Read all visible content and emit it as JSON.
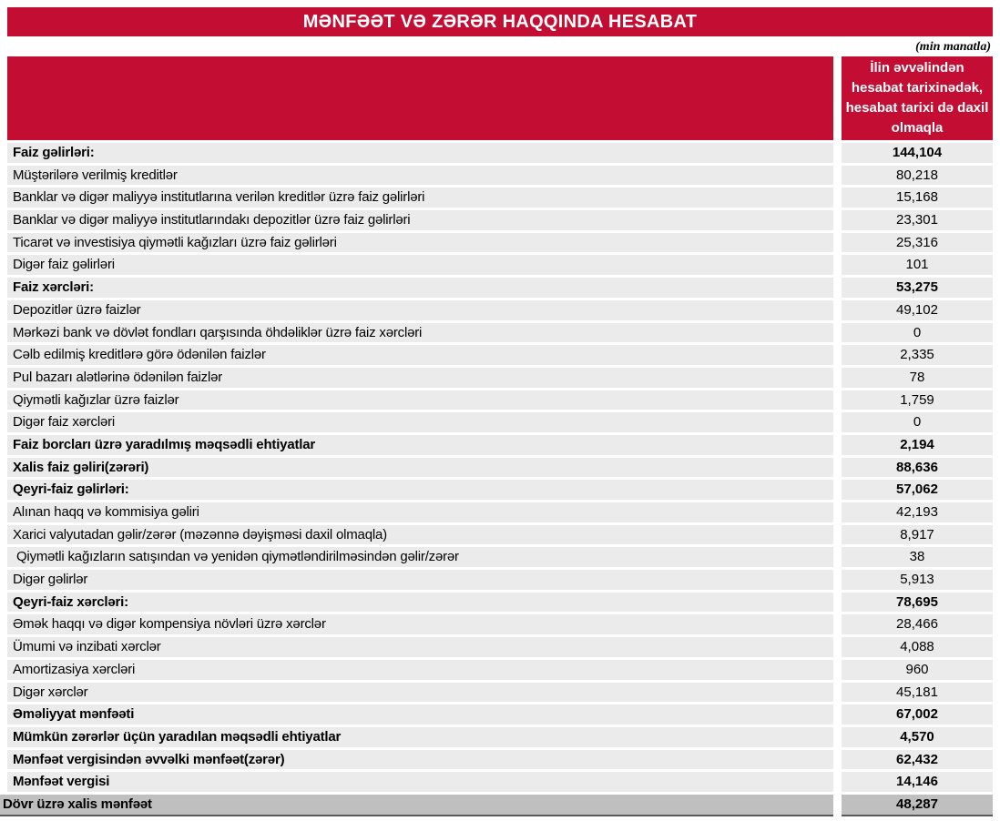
{
  "title": "MƏNFƏƏT VƏ ZƏRƏR HAQQINDA HESABAT",
  "units_note": "(min manatla)",
  "colors": {
    "accent_red": "#C40D33",
    "row_bg": "#EBEBEB",
    "total_row_bg": "#BFBFBF",
    "text": "#000000"
  },
  "table": {
    "value_column_header": "İlin əvvəlindən hesabat tarixinədək, hesabat tarixi də daxil olmaqla",
    "rows": [
      {
        "label": "Faiz gəlirləri:",
        "value": "144,104",
        "bold": true
      },
      {
        "label": "Müştərilərə verilmiş kreditlər",
        "value": "80,218",
        "bold": false
      },
      {
        "label": "Banklar və digər maliyyə institutlarına verilən kreditlər üzrə faiz gəlirləri",
        "value": "15,168",
        "bold": false
      },
      {
        "label": "Banklar və digər maliyyə institutlarındakı depozitlər üzrə faiz gəlirləri",
        "value": "23,301",
        "bold": false
      },
      {
        "label": "Ticarət və investisiya qiymətli kağızları üzrə faiz gəlirləri",
        "value": "25,316",
        "bold": false
      },
      {
        "label": "Digər faiz gəlirləri",
        "value": "101",
        "bold": false
      },
      {
        "label": "Faiz xərcləri:",
        "value": "53,275",
        "bold": true
      },
      {
        "label": "Depozitlər üzrə faizlər",
        "value": "49,102",
        "bold": false
      },
      {
        "label": "Mərkəzi bank və dövlət fondları qarşısında öhdəliklər üzrə faiz xərcləri",
        "value": "0",
        "bold": false
      },
      {
        "label": "Cəlb edilmiş kreditlərə görə ödənilən faizlər",
        "value": "2,335",
        "bold": false
      },
      {
        "label": "Pul bazarı alətlərinə ödənilən faizlər",
        "value": "78",
        "bold": false
      },
      {
        "label": "Qiymətli kağızlar üzrə faizlər",
        "value": "1,759",
        "bold": false
      },
      {
        "label": "Digər faiz xərcləri",
        "value": "0",
        "bold": false
      },
      {
        "label": "Faiz borcları üzrə yaradılmış məqsədli ehtiyatlar",
        "value": "2,194",
        "bold": true
      },
      {
        "label": "Xalis faiz gəliri(zərəri)",
        "value": "88,636",
        "bold": true
      },
      {
        "label": "Qeyri-faiz gəlirləri:",
        "value": "57,062",
        "bold": true
      },
      {
        "label": "Alınan haqq və kommisiya gəliri",
        "value": "42,193",
        "bold": false
      },
      {
        "label": "Xarici valyutadan gəlir/zərər (məzənnə dəyişməsi daxil olmaqla)",
        "value": "8,917",
        "bold": false
      },
      {
        "label": " Qiymətli kağızların satışından və yenidən qiymətləndirilməsindən gəlir/zərər",
        "value": "38",
        "bold": false
      },
      {
        "label": "Digər gəlirlər",
        "value": "5,913",
        "bold": false
      },
      {
        "label": "Qeyri-faiz xərcləri:",
        "value": "78,695",
        "bold": true
      },
      {
        "label": "Əmək haqqı və digər kompensiya növləri üzrə xərclər",
        "value": "28,466",
        "bold": false
      },
      {
        "label": "Ümumi və inzibati xərclər",
        "value": "4,088",
        "bold": false
      },
      {
        "label": "Amortizasiya xərcləri",
        "value": "960",
        "bold": false
      },
      {
        "label": "Digər xərclər",
        "value": "45,181",
        "bold": false
      },
      {
        "label": "Əməliyyat mənfəəti",
        "value": "67,002",
        "bold": true
      },
      {
        "label": "Mümkün zərərlər üçün yaradılan məqsədli ehtiyatlar",
        "value": "4,570",
        "bold": true
      },
      {
        "label": "Mənfəət vergisindən əvvəlki mənfəət(zərər)",
        "value": "62,432",
        "bold": true
      },
      {
        "label": "Mənfəət vergisi",
        "value": "14,146",
        "bold": true
      },
      {
        "label": "Dövr üzrə xalis mənfəət",
        "value": "48,287",
        "bold": true
      }
    ]
  }
}
